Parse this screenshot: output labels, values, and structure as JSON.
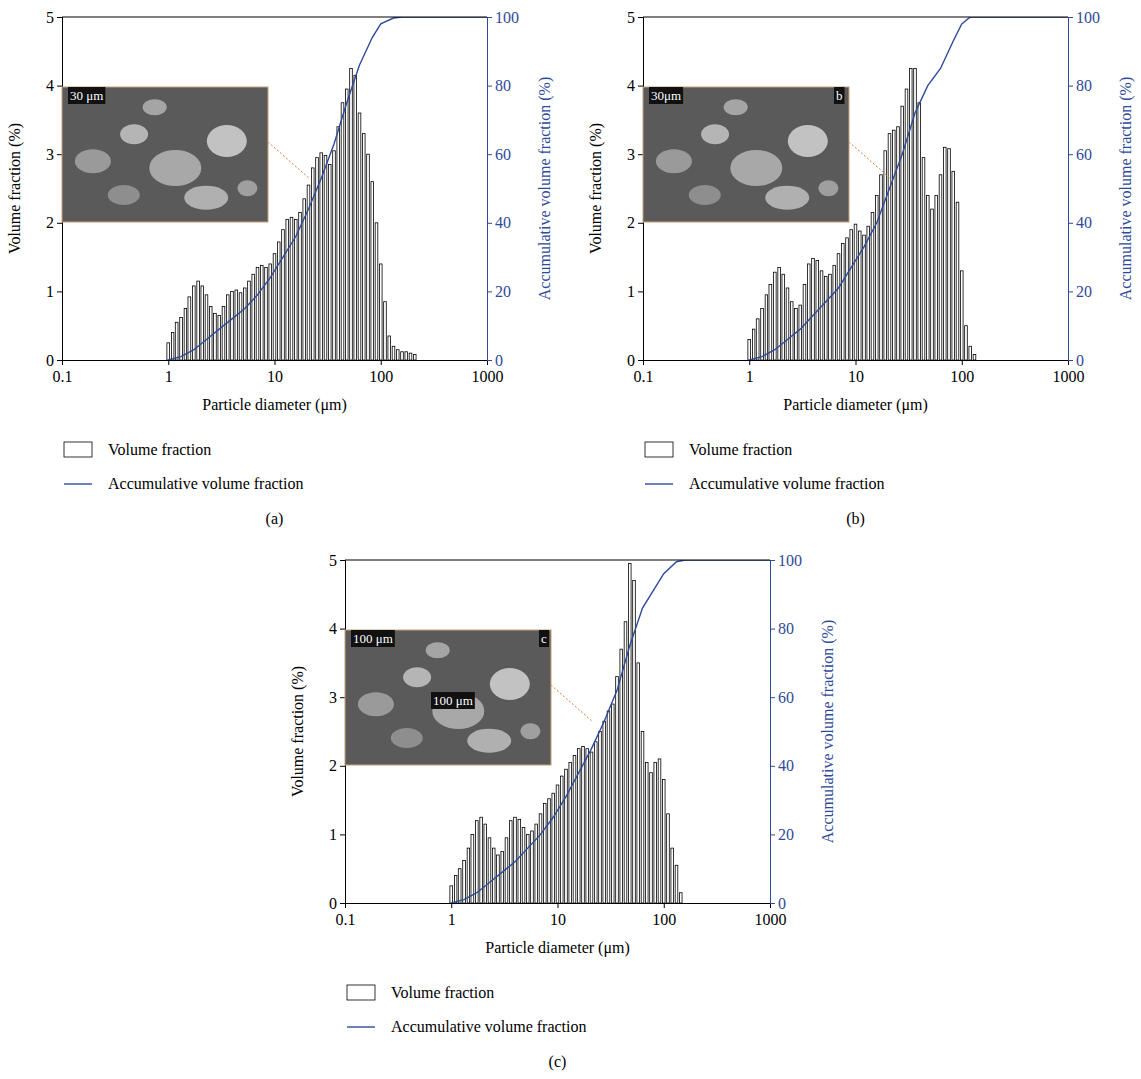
{
  "chart_data": [
    {
      "type": "bar",
      "title": "(a)",
      "xlabel": "Particle diameter (μm)",
      "ylabel": "Volume fraction (%)",
      "y2label": "Accumulative volume fraction (%)",
      "x": [
        1,
        1.1,
        1.2,
        1.32,
        1.45,
        1.58,
        1.74,
        1.91,
        2.09,
        2.29,
        2.51,
        2.75,
        3.02,
        3.31,
        3.63,
        3.98,
        4.37,
        4.79,
        5.25,
        5.75,
        6.31,
        6.92,
        7.59,
        8.32,
        9.12,
        10,
        10.96,
        12.02,
        13.18,
        14.45,
        15.85,
        17.38,
        19.05,
        20.89,
        22.91,
        25.12,
        27.54,
        30.2,
        33.11,
        36.31,
        39.81,
        43.65,
        47.86,
        52.48,
        57.54,
        63.1,
        69.18,
        75.86,
        83.18,
        91.2,
        100,
        109.6,
        120.2,
        131.8,
        144.5,
        158.5,
        173.8,
        190.5,
        208.9
      ],
      "series": [
        {
          "name": "Volume fraction",
          "type": "bar",
          "color": "#ffffff",
          "values": [
            0.25,
            0.4,
            0.55,
            0.62,
            0.75,
            0.92,
            1.08,
            1.15,
            1.08,
            0.95,
            0.78,
            0.68,
            0.65,
            0.78,
            0.95,
            1,
            1.02,
            0.98,
            1.05,
            1.15,
            1.25,
            1.35,
            1.38,
            1.35,
            1.4,
            1.55,
            1.72,
            1.9,
            2.05,
            2.08,
            2.05,
            2.15,
            2.35,
            2.55,
            2.8,
            2.95,
            3.02,
            2.98,
            2.85,
            3.05,
            3.4,
            3.75,
            3.95,
            4.25,
            4.15,
            3.6,
            3.3,
            3,
            2.6,
            2,
            1.4,
            0.85,
            0.35,
            0.2,
            0.15,
            0.12,
            0.12,
            0.1,
            0.08
          ]
        },
        {
          "name": "Accumulative volume fraction",
          "type": "line",
          "axis": "y2",
          "color": "#2e4a9a",
          "x": [
            1,
            1.32,
            1.74,
            2.29,
            3.02,
            3.98,
            5.25,
            6.92,
            9.12,
            12.02,
            15.85,
            20.89,
            27.54,
            36.31,
            47.86,
            63.1,
            83.18,
            100,
            131.8,
            158.5,
            1000
          ],
          "values": [
            0,
            1,
            3,
            6,
            9,
            12,
            15,
            19,
            24,
            30,
            36,
            44,
            53,
            63,
            75,
            86,
            94,
            98,
            99.7,
            100,
            100
          ]
        }
      ],
      "annotations": [
        "30 μm"
      ],
      "log": "x",
      "xlim": [
        0.1,
        1000
      ],
      "xticks": [
        0.1,
        1,
        10,
        100,
        1000
      ],
      "ylim": [
        0,
        5
      ],
      "yticks": [
        0,
        1,
        2,
        3,
        4,
        5
      ],
      "y2lim": [
        0,
        100
      ],
      "y2ticks": [
        0,
        20,
        40,
        60,
        80,
        100
      ],
      "legend": "bottom"
    },
    {
      "type": "bar",
      "title": "(b)",
      "xlabel": "Particle diameter (μm)",
      "ylabel": "Volume fraction (%)",
      "y2label": "Accumulative volume fraction (%)",
      "x": [
        1,
        1.1,
        1.2,
        1.32,
        1.45,
        1.58,
        1.74,
        1.91,
        2.09,
        2.29,
        2.51,
        2.75,
        3.02,
        3.31,
        3.63,
        3.98,
        4.37,
        4.79,
        5.25,
        5.75,
        6.31,
        6.92,
        7.59,
        8.32,
        9.12,
        10,
        10.96,
        12.02,
        13.18,
        14.45,
        15.85,
        17.38,
        19.05,
        20.89,
        22.91,
        25.12,
        27.54,
        30.2,
        33.11,
        36.31,
        39.81,
        43.65,
        47.86,
        52.48,
        57.54,
        63.1,
        69.18,
        75.86,
        83.18,
        91.2,
        100,
        109.6,
        120.2,
        131.8
      ],
      "series": [
        {
          "name": "Volume fraction",
          "type": "bar",
          "color": "#ffffff",
          "values": [
            0.3,
            0.45,
            0.6,
            0.75,
            0.95,
            1.1,
            1.28,
            1.35,
            1.25,
            1.05,
            0.85,
            0.75,
            0.8,
            1.1,
            1.4,
            1.48,
            1.45,
            1.3,
            1.22,
            1.25,
            1.38,
            1.55,
            1.7,
            1.78,
            1.9,
            1.98,
            1.88,
            1.82,
            1.95,
            2.15,
            2.4,
            2.7,
            3.05,
            3.3,
            3.35,
            3.4,
            3.7,
            3.95,
            4.25,
            4.25,
            3.75,
            2.95,
            2.4,
            2.2,
            2.4,
            2.7,
            3.1,
            3.08,
            2.75,
            2.3,
            1.3,
            0.5,
            0.2,
            0.08
          ]
        },
        {
          "name": "Accumulative volume fraction",
          "type": "line",
          "axis": "y2",
          "color": "#2e4a9a",
          "x": [
            1,
            1.32,
            1.74,
            2.29,
            3.02,
            3.98,
            5.25,
            6.92,
            9.12,
            12.02,
            15.85,
            20.89,
            27.54,
            36.31,
            47.86,
            63.1,
            83.18,
            100,
            120.2,
            1000
          ],
          "values": [
            0,
            1,
            3,
            6,
            9,
            13,
            17,
            21,
            27,
            33,
            40,
            50,
            60,
            72,
            80,
            85,
            93,
            98,
            100,
            100
          ]
        }
      ],
      "annotations": [
        "30μm",
        "b"
      ],
      "log": "x",
      "xlim": [
        0.1,
        1000
      ],
      "xticks": [
        0.1,
        1,
        10,
        100,
        1000
      ],
      "ylim": [
        0,
        5
      ],
      "yticks": [
        0,
        1,
        2,
        3,
        4,
        5
      ],
      "y2lim": [
        0,
        100
      ],
      "y2ticks": [
        0,
        20,
        40,
        60,
        80,
        100
      ],
      "legend": "bottom"
    },
    {
      "type": "bar",
      "title": "(c)",
      "xlabel": "Particle diameter (μm)",
      "ylabel": "Volume fraction (%)",
      "y2label": "Accumulative volume fraction (%)",
      "x": [
        1,
        1.1,
        1.2,
        1.32,
        1.45,
        1.58,
        1.74,
        1.91,
        2.09,
        2.29,
        2.51,
        2.75,
        3.02,
        3.31,
        3.63,
        3.98,
        4.37,
        4.79,
        5.25,
        5.75,
        6.31,
        6.92,
        7.59,
        8.32,
        9.12,
        10,
        10.96,
        12.02,
        13.18,
        14.45,
        15.85,
        17.38,
        19.05,
        20.89,
        22.91,
        25.12,
        27.54,
        30.2,
        33.11,
        36.31,
        39.81,
        43.65,
        47.86,
        52.48,
        57.54,
        63.1,
        69.18,
        75.86,
        83.18,
        91.2,
        100,
        109.6,
        120.2,
        131.8,
        144.5
      ],
      "series": [
        {
          "name": "Volume fraction",
          "type": "bar",
          "color": "#ffffff",
          "values": [
            0.25,
            0.4,
            0.5,
            0.62,
            0.8,
            1,
            1.2,
            1.25,
            1.15,
            0.95,
            0.8,
            0.7,
            0.75,
            0.95,
            1.2,
            1.25,
            1.22,
            1.1,
            1,
            1.05,
            1.15,
            1.3,
            1.45,
            1.52,
            1.6,
            1.72,
            1.85,
            1.95,
            2.05,
            2.15,
            2.25,
            2.28,
            2.25,
            2.2,
            2.35,
            2.5,
            2.65,
            2.8,
            2.9,
            3.3,
            3.7,
            4.1,
            4.95,
            4.7,
            3.5,
            2.5,
            2.05,
            1.9,
            2.05,
            2.1,
            1.8,
            1.3,
            0.8,
            0.55,
            0.15
          ]
        },
        {
          "name": "Accumulative volume fraction",
          "type": "line",
          "axis": "y2",
          "color": "#2e4a9a",
          "x": [
            1,
            1.32,
            1.74,
            2.29,
            3.02,
            3.98,
            5.25,
            6.92,
            9.12,
            12.02,
            15.85,
            20.89,
            27.54,
            36.31,
            47.86,
            63.1,
            83.18,
            100,
            131.8,
            158.5,
            1000
          ],
          "values": [
            0,
            1,
            3,
            6,
            9,
            12,
            16,
            20,
            25,
            31,
            38,
            45,
            53,
            62,
            75,
            86,
            92,
            96,
            99.5,
            100,
            100
          ]
        }
      ],
      "annotations": [
        "100 μm",
        "100 μm",
        "c"
      ],
      "log": "x",
      "xlim": [
        0.1,
        1000
      ],
      "xticks": [
        0.1,
        1,
        10,
        100,
        1000
      ],
      "ylim": [
        0,
        5
      ],
      "yticks": [
        0,
        1,
        2,
        3,
        4,
        5
      ],
      "y2lim": [
        0,
        100
      ],
      "y2ticks": [
        0,
        20,
        40,
        60,
        80,
        100
      ],
      "legend": "bottom"
    }
  ]
}
